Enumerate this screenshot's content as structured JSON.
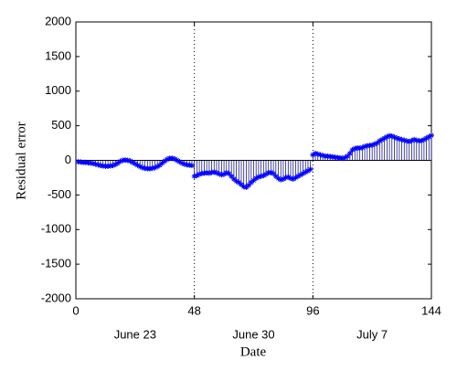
{
  "chart_data": {
    "type": "stem",
    "xlabel": "Date",
    "ylabel": "Residual error",
    "x": [
      1,
      2,
      3,
      4,
      5,
      6,
      7,
      8,
      9,
      10,
      11,
      12,
      13,
      14,
      15,
      16,
      17,
      18,
      19,
      20,
      21,
      22,
      23,
      24,
      25,
      26,
      27,
      28,
      29,
      30,
      31,
      32,
      33,
      34,
      35,
      36,
      37,
      38,
      39,
      40,
      41,
      42,
      43,
      44,
      45,
      46,
      47,
      48,
      49,
      50,
      51,
      52,
      53,
      54,
      55,
      56,
      57,
      58,
      59,
      60,
      61,
      62,
      63,
      64,
      65,
      66,
      67,
      68,
      69,
      70,
      71,
      72,
      73,
      74,
      75,
      76,
      77,
      78,
      79,
      80,
      81,
      82,
      83,
      84,
      85,
      86,
      87,
      88,
      89,
      90,
      91,
      92,
      93,
      94,
      95,
      96,
      97,
      98,
      99,
      100,
      101,
      102,
      103,
      104,
      105,
      106,
      107,
      108,
      109,
      110,
      111,
      112,
      113,
      114,
      115,
      116,
      117,
      118,
      119,
      120,
      121,
      122,
      123,
      124,
      125,
      126,
      127,
      128,
      129,
      130,
      131,
      132,
      133,
      134,
      135,
      136,
      137,
      138,
      139,
      140,
      141,
      142,
      143,
      144
    ],
    "values": [
      -20,
      -25,
      -30,
      -30,
      -35,
      -40,
      -45,
      -55,
      -65,
      -75,
      -80,
      -85,
      -85,
      -80,
      -75,
      -60,
      -40,
      -15,
      0,
      5,
      0,
      -10,
      -30,
      -50,
      -70,
      -90,
      -105,
      -115,
      -120,
      -120,
      -115,
      -105,
      -90,
      -70,
      -40,
      -10,
      15,
      30,
      30,
      20,
      0,
      -20,
      -40,
      -55,
      -65,
      -70,
      -75,
      -230,
      -220,
      -200,
      -190,
      -185,
      -180,
      -185,
      -175,
      -170,
      -180,
      -195,
      -210,
      -200,
      -180,
      -190,
      -230,
      -270,
      -300,
      -320,
      -350,
      -380,
      -390,
      -360,
      -320,
      -290,
      -260,
      -240,
      -230,
      -220,
      -200,
      -180,
      -175,
      -190,
      -230,
      -260,
      -280,
      -270,
      -250,
      -240,
      -260,
      -270,
      -250,
      -230,
      -210,
      -190,
      -170,
      -150,
      -130,
      80,
      100,
      90,
      80,
      70,
      60,
      60,
      55,
      50,
      45,
      40,
      35,
      30,
      40,
      60,
      100,
      150,
      170,
      180,
      175,
      185,
      200,
      210,
      215,
      220,
      235,
      250,
      280,
      300,
      320,
      340,
      355,
      350,
      335,
      320,
      310,
      300,
      290,
      280,
      270,
      285,
      300,
      290,
      280,
      285,
      300,
      320,
      340,
      360
    ],
    "color": "#0000ff",
    "xlim": [
      0,
      144
    ],
    "xticks": [
      0,
      48,
      96,
      144
    ],
    "separators": [
      48,
      96
    ],
    "date_labels": [
      {
        "value": 24,
        "label": "June 23"
      },
      {
        "value": 72,
        "label": "June 30"
      },
      {
        "value": 120,
        "label": "July 7"
      }
    ],
    "ylim": [
      -2000,
      2000
    ],
    "yticks": [
      -2000,
      -1500,
      -1000,
      -500,
      0,
      500,
      1000,
      1500,
      2000
    ]
  }
}
